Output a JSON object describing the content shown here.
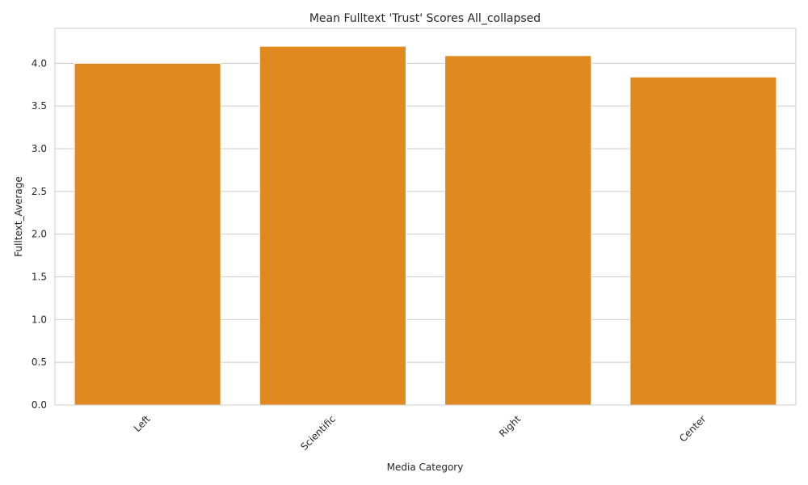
{
  "chart_data": {
    "type": "bar",
    "title": "Mean Fulltext 'Trust' Scores All_collapsed",
    "xlabel": "Media Category",
    "ylabel": "Fulltext_Average",
    "categories": [
      "Left",
      "Scientific",
      "Right",
      "Center"
    ],
    "values": [
      4.0,
      4.2,
      4.09,
      3.84
    ],
    "ylim": [
      0,
      4.41
    ],
    "yticks": [
      "0.0",
      "0.5",
      "1.0",
      "1.5",
      "2.0",
      "2.5",
      "3.0",
      "3.5",
      "4.0"
    ],
    "grid": true,
    "bar_color": "#e0891f",
    "grid_color": "#cccccc",
    "spine_color": "#cccccc"
  }
}
